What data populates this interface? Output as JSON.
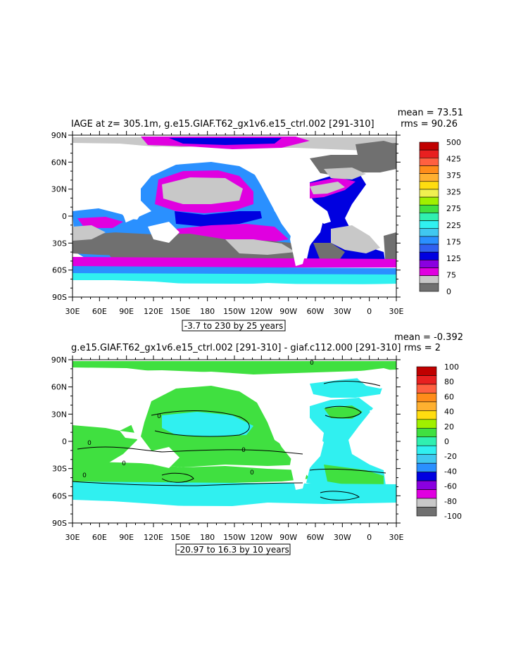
{
  "panels": [
    {
      "title": "IAGE at z= 305.1m, g.e15.GIAF.T62_gx1v6.e15_ctrl.002 [291-310]",
      "stats": {
        "mean": "mean = 73.51",
        "rms": "rms = 90.26"
      },
      "range_label": "-3.7 to 230 by 25 years",
      "colorbar": {
        "labels": [
          "500",
          "425",
          "375",
          "325",
          "275",
          "225",
          "175",
          "125",
          "75",
          "0"
        ],
        "colors": [
          "#c00000",
          "#e82020",
          "#ff6040",
          "#ff8c1a",
          "#ffb030",
          "#ffdd10",
          "#f0f050",
          "#a0f000",
          "#40e040",
          "#30f0b0",
          "#30f0f0",
          "#40c8f0",
          "#2a90ff",
          "#3060f0",
          "#0000e0",
          "#8a00e0",
          "#e000e0",
          "#c8c8c8",
          "#707070"
        ]
      }
    },
    {
      "title": "g.e15.GIAF.T62_gx1v6.e15_ctrl.002 [291-310] - giaf.c112.000 [291-310]",
      "stats": {
        "mean": "mean = -0.392",
        "rms": "rms = 2"
      },
      "range_label": "-20.97 to 16.3 by 10 years",
      "colorbar": {
        "labels": [
          "100",
          "80",
          "60",
          "40",
          "20",
          "0",
          "-20",
          "-40",
          "-60",
          "-80",
          "-100"
        ],
        "colors": [
          "#c00000",
          "#e82020",
          "#ff6040",
          "#ff8c1a",
          "#ffb030",
          "#ffdd10",
          "#a0f000",
          "#40e040",
          "#30f0b0",
          "#30f0f0",
          "#40c8f0",
          "#2a90ff",
          "#0000e0",
          "#8a00e0",
          "#e000e0",
          "#c8c8c8",
          "#707070"
        ]
      }
    }
  ],
  "axes": {
    "lat_labels": [
      "90N",
      "60N",
      "30N",
      "0",
      "30S",
      "60S",
      "90S"
    ],
    "lon_labels": [
      "30E",
      "60E",
      "90E",
      "120E",
      "150E",
      "180",
      "150W",
      "120W",
      "90W",
      "60W",
      "30W",
      "0",
      "30E"
    ]
  },
  "contour_labels": [
    "0",
    "0",
    "0",
    "0",
    "0",
    "0",
    "0"
  ],
  "palette": {
    "land": "#ffffff",
    "dark_gray": "#707070",
    "light_gray": "#c8c8c8",
    "magenta": "#e000e0",
    "blue": "#0000e0",
    "mid_blue": "#2a90ff",
    "cyan": "#30f0f0",
    "green": "#40e040"
  }
}
